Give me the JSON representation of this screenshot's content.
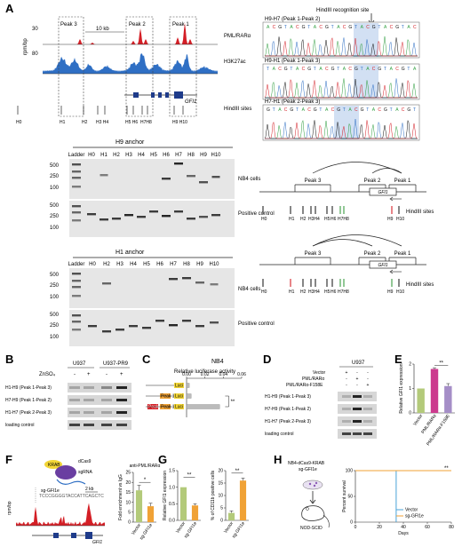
{
  "panels": {
    "A": {
      "letter": "A",
      "track_unit": "rpm/bp",
      "tracks": [
        {
          "label": "PML/RARα",
          "ymax": "30",
          "color": "#d41f26"
        },
        {
          "label": "H3K27ac",
          "ymax": "80",
          "color": "#2f6fc4"
        }
      ],
      "peaks": [
        "Peak 3",
        "Peak 2",
        "Peak 1"
      ],
      "scale": "10 kb",
      "gene": "GFI1",
      "hind_label": "HindIII sites",
      "sites": [
        "H0",
        "H1",
        "H2",
        "H3",
        "H4",
        "H5",
        "H6",
        "H7",
        "H8",
        "H9",
        "H10"
      ],
      "site_tags": [
        "H1",
        "H2",
        "H3 H4",
        "H5 H6",
        "H7H8",
        "H9 H10"
      ],
      "gels": [
        {
          "anchor": "H9 anchor",
          "lanes": [
            "Ladder",
            "H0",
            "H1",
            "H2",
            "H3",
            "H4",
            "H5",
            "H6",
            "H7",
            "H8",
            "H9",
            "H10"
          ],
          "ladder": [
            "500",
            "250",
            "100",
            "500",
            "250",
            "100"
          ],
          "rows": [
            "NB4 cells",
            "Positive control"
          ]
        },
        {
          "anchor": "H1 anchor",
          "lanes": [
            "Ladder",
            "H0",
            "H2",
            "H3",
            "H4",
            "H5",
            "H6",
            "H7",
            "H8",
            "H9",
            "H10"
          ],
          "ladder": [
            "500",
            "250",
            "100",
            "500",
            "250",
            "100"
          ],
          "rows": [
            "NB4 cells",
            "Positive control"
          ]
        }
      ],
      "hindiii_site": "HindIII recognition site",
      "chromatograms": [
        "H9-H7 (Peak 1-Peak 2)",
        "H9-H1 (Peak 1-Peak 3)",
        "H7-H1 (Peak 2-Peak 3)"
      ]
    },
    "B": {
      "letter": "B",
      "groups": [
        "U937",
        "U937-PR9"
      ],
      "treatment": "ZnSO₄",
      "signs": [
        "-",
        "+",
        "-",
        "+"
      ],
      "rows": [
        "H1-H9 (Peak 1-Peak 3)",
        "H7-H9 (Peak 1-Peak 2)",
        "H1-H7 (Peak 2-Peak 3)",
        "loading control"
      ]
    },
    "C": {
      "letter": "C",
      "title": "NB4",
      "axis_title": "Relative luciferase activity",
      "ticks": [
        "0.00",
        "0.02",
        "0.04",
        "0.06"
      ],
      "luc": "Luci",
      "constructs": [
        "Peak 1",
        "Peak 2"
      ],
      "sig": "**"
    },
    "D": {
      "letter": "D",
      "group": "U937",
      "conditions": [
        "Vector",
        "PML/RARα",
        "PML/RARα-F158E"
      ],
      "signs": [
        [
          "+",
          "-",
          "-"
        ],
        [
          "-",
          "+",
          "-"
        ],
        [
          "-",
          "-",
          "+"
        ]
      ],
      "rows": [
        "H1-H9 (Peak 1-Peak 3)",
        "H7-H9 (Peak 1-Peak 2)",
        "H1-H7 (Peak 2-Peak 3)",
        "loading control"
      ]
    },
    "F": {
      "letter": "F",
      "krab": "KRAB",
      "dcas9": "dCas9",
      "sgrna": "sgRNA",
      "sg_label": "sg-GFI1e",
      "seq": "TCCCGGGGTACCATTCAGCTC",
      "scale": "2 kb",
      "unit": "rpm/bp",
      "gene": "GFI1",
      "sig": "*"
    },
    "G": {
      "letter": "G",
      "sig": "**"
    },
    "H": {
      "letter": "H",
      "cells": "NB4-dCas9-KRAB",
      "cells2": "sg-GFI1e",
      "mouse": "NOD-SCID",
      "sig": "**"
    },
    "E": {
      "letter": "E",
      "sig": "**"
    }
  },
  "chart_data": [
    {
      "type": "bar",
      "panel": "E",
      "ylabel": "Relative GFI1 expression",
      "categories": [
        "Vector",
        "PML/RARα",
        "PML/RARα-F158E"
      ],
      "values": [
        1.0,
        1.8,
        1.1
      ],
      "errors": [
        0.0,
        0.05,
        0.1
      ],
      "colors": [
        "#b3ca7a",
        "#cc3a8e",
        "#a58ec7"
      ],
      "ylim": [
        0,
        2
      ],
      "ticks": [
        "0",
        "1",
        "2"
      ]
    },
    {
      "type": "bar",
      "panel": "F",
      "title": "anti-PML/RARα",
      "ylabel": "Fold enrichment vs IgG",
      "categories": [
        "Vector",
        "sg-GFI1e"
      ],
      "values": [
        16,
        8
      ],
      "errors": [
        2.5,
        1.5
      ],
      "colors": [
        "#b3ca7a",
        "#f0a236"
      ],
      "ylim": [
        0,
        25
      ],
      "ticks": [
        "0",
        "5",
        "10",
        "15",
        "20",
        "25"
      ]
    },
    {
      "type": "bar",
      "panel": "G1",
      "ylabel": "Relative GFI1 expression",
      "categories": [
        "Vector",
        "sg-GFI1e"
      ],
      "values": [
        1.0,
        0.45
      ],
      "errors": [
        0.0,
        0.05
      ],
      "colors": [
        "#b3ca7a",
        "#f0a236"
      ],
      "ylim": [
        0,
        1.5
      ],
      "ticks": [
        "0.0",
        "0.5",
        "1.0",
        "1.5"
      ]
    },
    {
      "type": "bar",
      "panel": "G2",
      "ylabel": "% of CD11b positive cells",
      "categories": [
        "Vector",
        "sg-GFI1e"
      ],
      "values": [
        3,
        16
      ],
      "errors": [
        0.8,
        1.0
      ],
      "colors": [
        "#b3ca7a",
        "#f0a236"
      ],
      "ylim": [
        0,
        20
      ],
      "ticks": [
        "0",
        "5",
        "10",
        "15",
        "20"
      ]
    },
    {
      "type": "line",
      "panel": "H",
      "ylabel": "Percent survival",
      "xlabel": "Days",
      "xlim": [
        0,
        80
      ],
      "ylim": [
        0,
        100
      ],
      "xticks": [
        "0",
        "20",
        "40",
        "60",
        "80"
      ],
      "yticks": [
        "0",
        "50",
        "100"
      ],
      "series": [
        {
          "name": "Vector",
          "color": "#4aa3d8",
          "steps": [
            [
              0,
              100
            ],
            [
              34,
              100
            ],
            [
              34,
              0
            ]
          ]
        },
        {
          "name": "sg-GFI1e",
          "color": "#f0a236",
          "steps": [
            [
              0,
              100
            ],
            [
              80,
              100
            ]
          ]
        }
      ]
    },
    {
      "type": "bar",
      "panel": "C",
      "xlabel": "Relative luciferase activity",
      "values": [
        0.003,
        0.005,
        0.036
      ],
      "xlim": [
        0,
        0.06
      ]
    }
  ]
}
